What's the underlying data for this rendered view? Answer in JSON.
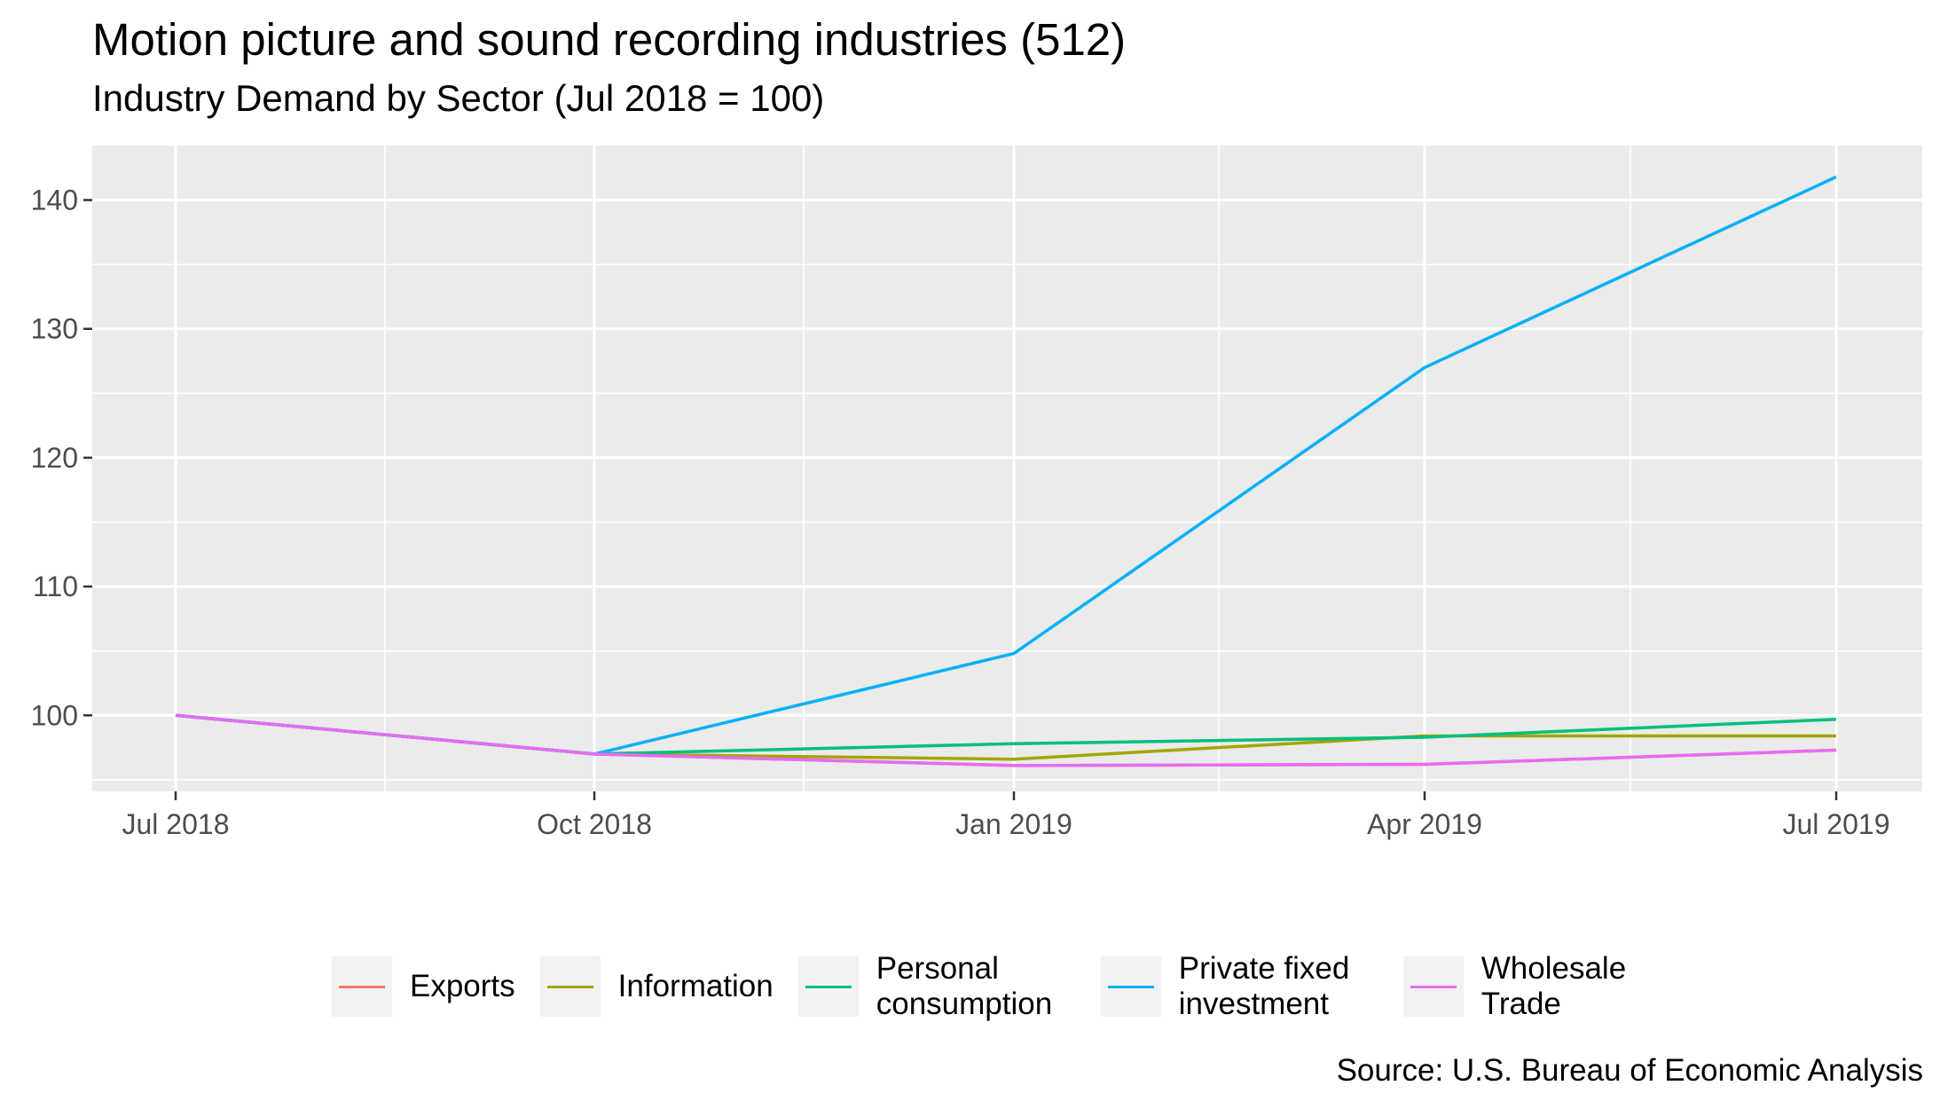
{
  "chart_data": {
    "type": "line",
    "title": "Motion picture and sound recording industries (512)",
    "subtitle": "Industry Demand by Sector (Jul 2018 = 100)",
    "caption": "Source: U.S. Bureau of Economic Analysis",
    "x": [
      "2018-07-01",
      "2018-10-01",
      "2019-01-01",
      "2019-04-01",
      "2019-07-01"
    ],
    "x_tick_labels": [
      "Jul 2018",
      "Oct 2018",
      "Jan 2019",
      "Apr 2019",
      "Jul 2019"
    ],
    "y_ticks": [
      100,
      110,
      120,
      130,
      140
    ],
    "ylim": [
      94,
      143
    ],
    "grid": true,
    "legend_position": "bottom",
    "series": [
      {
        "name": "Exports",
        "color": "#F8766D",
        "values": [
          100,
          97.0,
          96.1,
          96.2,
          97.3
        ]
      },
      {
        "name": "Information",
        "color": "#A3A500",
        "values": [
          100,
          97.0,
          96.6,
          98.4,
          98.4
        ]
      },
      {
        "name": "Personal consumption",
        "color": "#00BF7D",
        "values": [
          100,
          97.0,
          97.8,
          98.3,
          99.7
        ]
      },
      {
        "name": "Private fixed investment",
        "color": "#00B0F6",
        "values": [
          100,
          97.0,
          104.8,
          127.0,
          141.8
        ]
      },
      {
        "name": "Wholesale Trade",
        "color": "#E76BF3",
        "values": [
          100,
          97.0,
          96.1,
          96.2,
          97.3
        ]
      }
    ]
  }
}
